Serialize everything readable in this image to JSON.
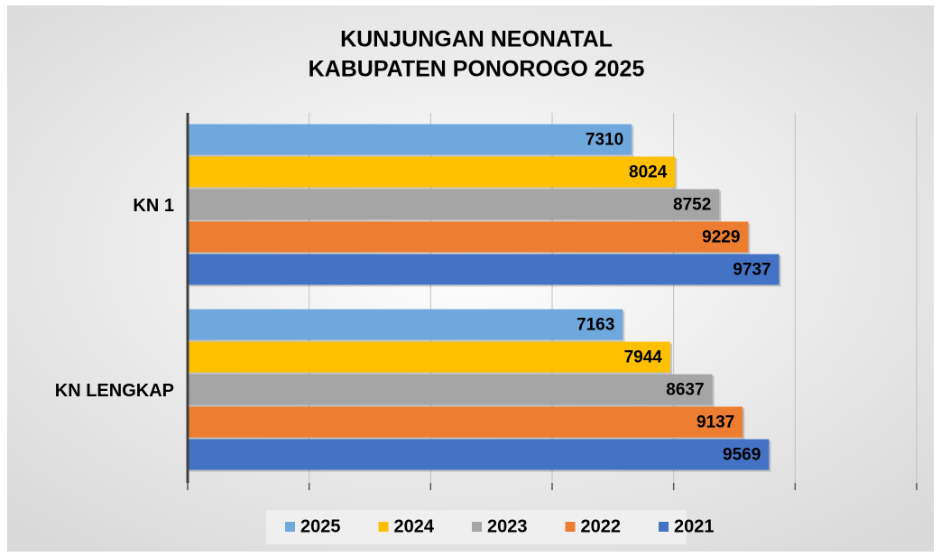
{
  "chart_data": {
    "type": "bar",
    "orientation": "horizontal",
    "title": [
      "KUNJUNGAN NEONATAL",
      "KABUPATEN PONOROGO 2025"
    ],
    "categories": [
      "KN 1",
      "KN LENGKAP"
    ],
    "series": [
      {
        "name": "2025",
        "color": "#6fa8dc",
        "values": [
          7310,
          7163
        ]
      },
      {
        "name": "2024",
        "color": "#ffc000",
        "values": [
          8024,
          7944
        ]
      },
      {
        "name": "2023",
        "color": "#a5a5a5",
        "values": [
          8752,
          8637
        ]
      },
      {
        "name": "2022",
        "color": "#ed7d31",
        "values": [
          9229,
          9137
        ]
      },
      {
        "name": "2021",
        "color": "#4472c4",
        "values": [
          9737,
          9569
        ]
      }
    ],
    "xlim": [
      0,
      12000
    ],
    "xticks": [
      0,
      2000,
      4000,
      6000,
      8000,
      10000,
      12000
    ],
    "grid": true,
    "legend": "bottom"
  }
}
